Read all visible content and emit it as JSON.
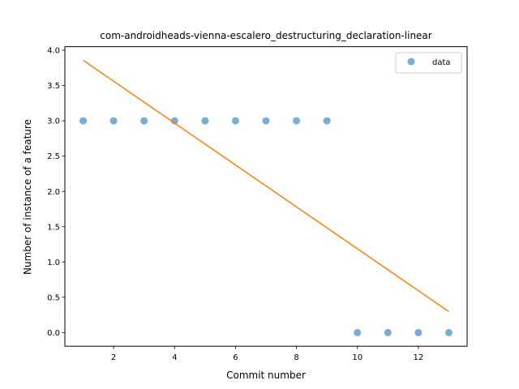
{
  "chart_data": {
    "type": "scatter",
    "title": "com-androidheads-vienna-escalero_destructuring_declaration-linear",
    "xlabel": "Commit number",
    "ylabel": "Number of instance of a feature",
    "xlim": [
      0.4,
      13.6
    ],
    "ylim": [
      -0.193,
      4.05
    ],
    "xticks": [
      2,
      4,
      6,
      8,
      10,
      12
    ],
    "yticks": [
      0.0,
      0.5,
      1.0,
      1.5,
      2.0,
      2.5,
      3.0,
      3.5,
      4.0
    ],
    "xtick_labels": [
      "2",
      "4",
      "6",
      "8",
      "10",
      "12"
    ],
    "ytick_labels": [
      "0.0",
      "0.5",
      "1.0",
      "1.5",
      "2.0",
      "2.5",
      "3.0",
      "3.5",
      "4.0"
    ],
    "grid": false,
    "legend_position": "top-right",
    "series": [
      {
        "name": "data",
        "kind": "scatter",
        "color": "#1f77b4",
        "x": [
          1,
          2,
          3,
          4,
          5,
          6,
          7,
          8,
          9,
          10,
          11,
          12,
          13
        ],
        "y": [
          3,
          3,
          3,
          3,
          3,
          3,
          3,
          3,
          3,
          0,
          0,
          0,
          0
        ]
      },
      {
        "kind": "line",
        "color": "#ff7f0e",
        "x": [
          1,
          13
        ],
        "y": [
          3.857,
          0.297
        ]
      }
    ]
  }
}
